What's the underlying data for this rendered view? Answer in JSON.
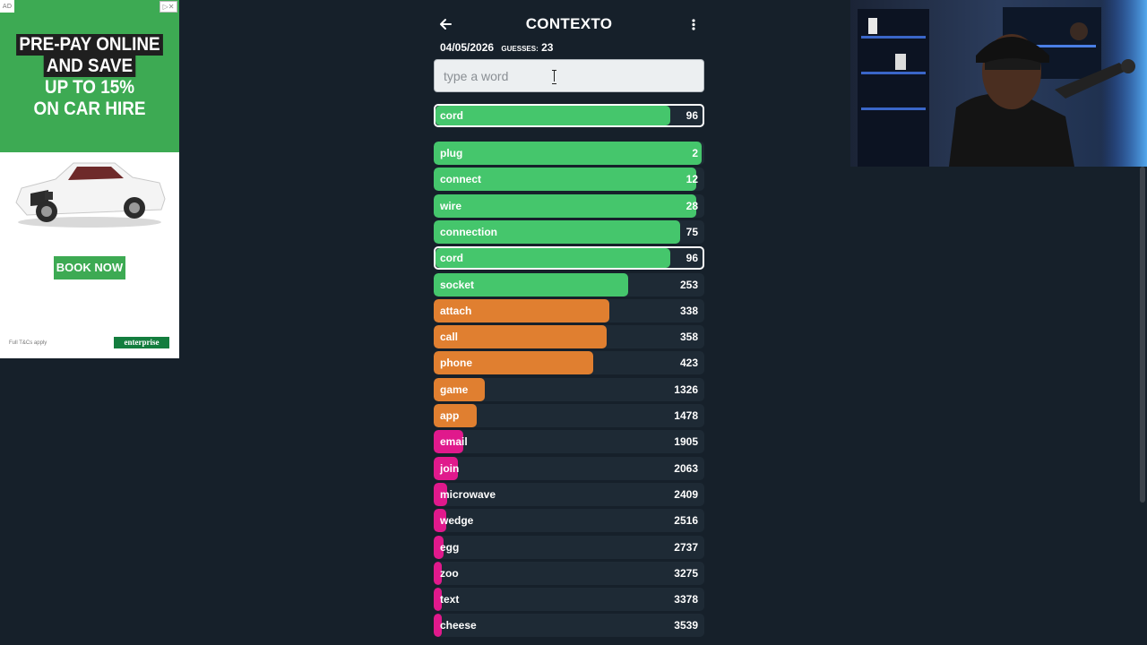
{
  "ad": {
    "corner_label": "AD",
    "headline": [
      "PRE-PAY ONLINE",
      "AND SAVE",
      "UP TO 15%",
      "ON CAR HIRE"
    ],
    "button_label": "BOOK NOW",
    "terms": "Full T&Cs apply",
    "brand": "enterprise",
    "colors": {
      "green": "#3daa53",
      "brand_green": "#137d3e"
    }
  },
  "header": {
    "title": "CONTEXTO",
    "date": "04/05/2026",
    "guesses_label": "GUESSES:",
    "guesses_count": "23"
  },
  "search": {
    "placeholder": "type a word",
    "value": ""
  },
  "last_guess": {
    "word": "cord",
    "rank": "96",
    "fill": 0.88,
    "color": "#45c66c"
  },
  "guesses": [
    {
      "word": "plug",
      "rank": "2",
      "fill": 0.99,
      "color": "#45c66c"
    },
    {
      "word": "connect",
      "rank": "12",
      "fill": 0.97,
      "color": "#45c66c"
    },
    {
      "word": "wire",
      "rank": "28",
      "fill": 0.97,
      "color": "#45c66c"
    },
    {
      "word": "connection",
      "rank": "75",
      "fill": 0.91,
      "color": "#45c66c"
    },
    {
      "word": "cord",
      "rank": "96",
      "fill": 0.88,
      "color": "#45c66c",
      "highlight": true
    },
    {
      "word": "socket",
      "rank": "253",
      "fill": 0.72,
      "color": "#45c66c"
    },
    {
      "word": "attach",
      "rank": "338",
      "fill": 0.65,
      "color": "#e07f30"
    },
    {
      "word": "call",
      "rank": "358",
      "fill": 0.64,
      "color": "#e07f30"
    },
    {
      "word": "phone",
      "rank": "423",
      "fill": 0.59,
      "color": "#e07f30"
    },
    {
      "word": "game",
      "rank": "1326",
      "fill": 0.19,
      "color": "#e07f30"
    },
    {
      "word": "app",
      "rank": "1478",
      "fill": 0.16,
      "color": "#e07f30"
    },
    {
      "word": "email",
      "rank": "1905",
      "fill": 0.11,
      "color": "#e0198c"
    },
    {
      "word": "join",
      "rank": "2063",
      "fill": 0.09,
      "color": "#e0198c"
    },
    {
      "word": "microwave",
      "rank": "2409",
      "fill": 0.05,
      "color": "#e0198c"
    },
    {
      "word": "wedge",
      "rank": "2516",
      "fill": 0.045,
      "color": "#e0198c"
    },
    {
      "word": "egg",
      "rank": "2737",
      "fill": 0.035,
      "color": "#e0198c"
    },
    {
      "word": "zoo",
      "rank": "3275",
      "fill": 0.02,
      "color": "#e0198c"
    },
    {
      "word": "text",
      "rank": "3378",
      "fill": 0.02,
      "color": "#e0198c"
    },
    {
      "word": "cheese",
      "rank": "3539",
      "fill": 0.02,
      "color": "#e0198c"
    }
  ],
  "colors": {
    "background": "#16202a",
    "row_bg": "#1e2a35"
  }
}
